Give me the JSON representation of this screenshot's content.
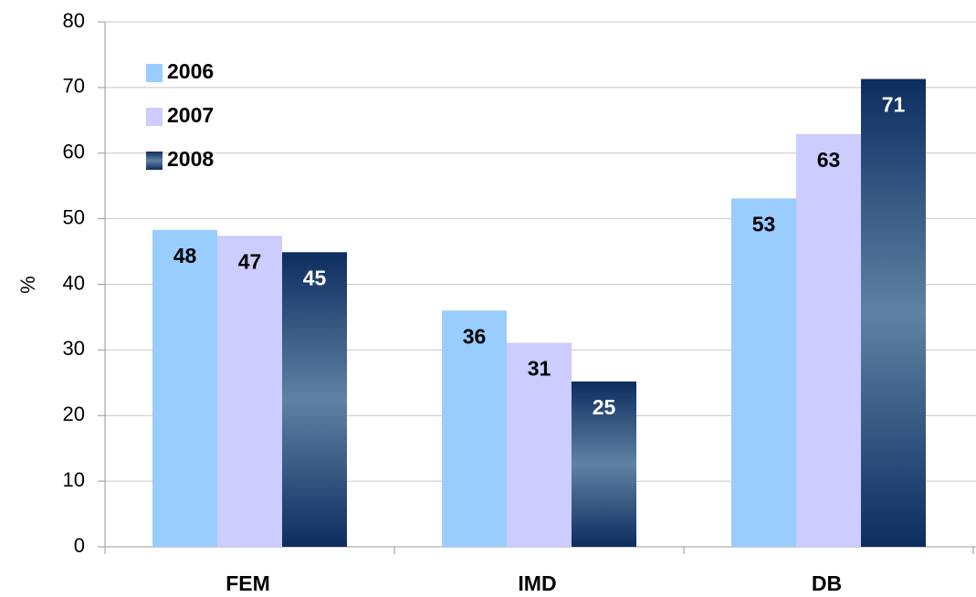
{
  "chart_data": {
    "type": "bar",
    "y_label": "%",
    "categories": [
      "FEM",
      "IMD",
      "DB"
    ],
    "series": [
      {
        "name": "2006",
        "color": "#99ccff",
        "values": [
          48.3,
          36,
          53.1
        ],
        "value_labels": [
          "48",
          "36",
          "53"
        ]
      },
      {
        "name": "2007",
        "color": "#ccccff",
        "values": [
          47.4,
          31.1,
          62.9
        ],
        "value_labels": [
          "47",
          "31",
          "63"
        ]
      },
      {
        "name": "2008",
        "color": "#0d2d60",
        "gradient": true,
        "values": [
          44.9,
          25.2,
          71.3
        ],
        "value_labels": [
          "45",
          "25",
          "71"
        ]
      }
    ],
    "ylim": [
      0,
      80
    ],
    "yticks": [
      0,
      10,
      20,
      30,
      40,
      50,
      60,
      70,
      80
    ],
    "grid": true,
    "legend": "top-left"
  }
}
